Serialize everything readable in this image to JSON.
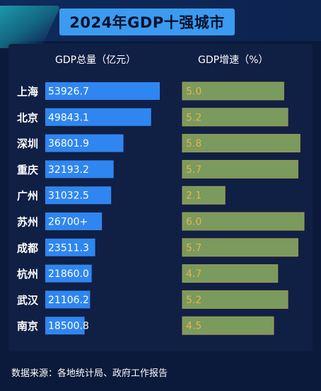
{
  "title": "2024年GDP十强城市",
  "chart_data": [
    {
      "type": "bar",
      "orientation": "horizontal",
      "title": "GDP总量（亿元）",
      "categories": [
        "上海",
        "北京",
        "深圳",
        "重庆",
        "广州",
        "苏州",
        "成都",
        "杭州",
        "武汉",
        "南京"
      ],
      "values": [
        53926.7,
        49843.1,
        36801.9,
        32193.2,
        31032.5,
        26700,
        23511.3,
        21860.0,
        21106.2,
        18500.8
      ],
      "value_labels": [
        "53926.7",
        "49843.1",
        "36801.9",
        "32193.2",
        "31032.5",
        "26700+",
        "23511.3",
        "21860.0",
        "21106.2",
        "18500.8"
      ],
      "xlim": [
        0,
        58000
      ],
      "color": "#2f86f0"
    },
    {
      "type": "bar",
      "orientation": "horizontal",
      "title": "GDP增速（%）",
      "categories": [
        "上海",
        "北京",
        "深圳",
        "重庆",
        "广州",
        "苏州",
        "成都",
        "杭州",
        "武汉",
        "南京"
      ],
      "values": [
        5.0,
        5.2,
        5.8,
        5.7,
        2.1,
        6.0,
        5.7,
        4.7,
        5.2,
        4.5
      ],
      "value_labels": [
        "5.0",
        "5.2",
        "5.8",
        "5.7",
        "2.1",
        "6.0",
        "5.7",
        "4.7",
        "5.2",
        "4.5"
      ],
      "xlim": [
        0,
        6.0
      ],
      "color": "#7a9a5e",
      "border_color": "#a89a4a",
      "label_color": "#e8b34a"
    }
  ],
  "footer": "数据来源：各地统计局、政府工作报告",
  "colors": {
    "background": "#0b1a3a",
    "panel": "#101f44",
    "title_bar": "#3b9bf0",
    "accent_teal": "#1fa7b5"
  }
}
